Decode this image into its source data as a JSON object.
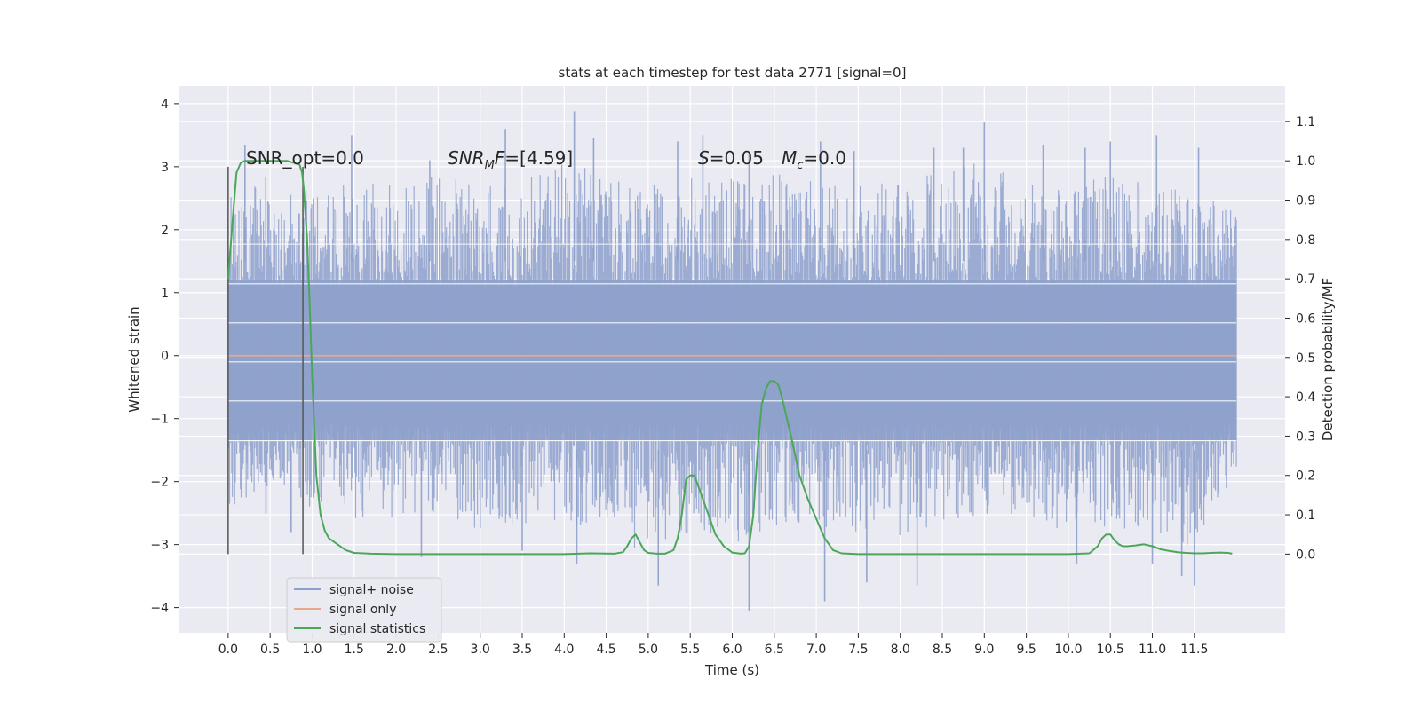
{
  "chart_data": {
    "type": "line",
    "title": "stats at each timestep for test data 2771 [signal=0]",
    "xlabel": "Time (s)",
    "ylabel_left": "Whitened strain",
    "ylabel_right": "Detection probability/MF",
    "xlim": [
      -0.58,
      12.58
    ],
    "ylim_left": [
      -4.4,
      4.28
    ],
    "ylim_right": [
      -0.2,
      1.19
    ],
    "x_ticks": [
      0.0,
      0.5,
      1.0,
      1.5,
      2.0,
      2.5,
      3.0,
      3.5,
      4.0,
      4.5,
      5.0,
      5.5,
      6.0,
      6.5,
      7.0,
      7.5,
      8.0,
      8.5,
      9.0,
      9.5,
      10.0,
      10.5,
      11.0,
      11.5
    ],
    "x_tick_labels": [
      "0.0",
      "0.5",
      "1.0",
      "1.5",
      "2.0",
      "2.5",
      "3.0",
      "3.5",
      "4.0",
      "4.5",
      "5.0",
      "5.5",
      "6.0",
      "6.5",
      "7.0",
      "7.5",
      "8.0",
      "8.5",
      "9.0",
      "9.5",
      "10.0",
      "10.5",
      "11.0",
      "11.5"
    ],
    "y_left_ticks": [
      -4,
      -3,
      -2,
      -1,
      0,
      1,
      2,
      3,
      4
    ],
    "y_left_tick_labels": [
      "−4",
      "−3",
      "−2",
      "−1",
      "0",
      "1",
      "2",
      "3",
      "4"
    ],
    "y_right_ticks": [
      0.0,
      0.1,
      0.2,
      0.3,
      0.4,
      0.5,
      0.6,
      0.7,
      0.8,
      0.9,
      1.0,
      1.1
    ],
    "y_right_tick_labels": [
      "0.0",
      "0.1",
      "0.2",
      "0.3",
      "0.4",
      "0.5",
      "0.6",
      "0.7",
      "0.8",
      "0.9",
      "1.0",
      "1.1"
    ],
    "grid": true,
    "legend_placement": "lower-left",
    "annotations": {
      "snr_opt": "SNR_opt=0.0",
      "snr_mf_main": "SNR",
      "snr_mf_sub": "M",
      "snr_mf_rest": "F=[4.59]",
      "s_main": "S",
      "s_rest": "=0.05",
      "mc_main": "M",
      "mc_sub": "c",
      "mc_rest": "=0.0"
    },
    "vlines": [
      0.0,
      0.89
    ],
    "series": [
      {
        "name": "signal+ noise",
        "axis": "left",
        "color": "#8da0cb",
        "x_range": [
          0.0,
          12.0
        ],
        "envelope_upper": [
          [
            0.0,
            2.5
          ],
          [
            0.5,
            2.9
          ],
          [
            1.0,
            2.6
          ],
          [
            1.5,
            2.8
          ],
          [
            2.0,
            2.7
          ],
          [
            2.5,
            2.9
          ],
          [
            3.0,
            2.8
          ],
          [
            3.5,
            2.9
          ],
          [
            4.0,
            3.2
          ],
          [
            4.5,
            2.8
          ],
          [
            5.0,
            2.7
          ],
          [
            5.5,
            2.9
          ],
          [
            6.0,
            2.8
          ],
          [
            6.5,
            2.9
          ],
          [
            7.0,
            2.8
          ],
          [
            7.5,
            2.7
          ],
          [
            8.0,
            2.8
          ],
          [
            8.5,
            2.9
          ],
          [
            9.0,
            3.1
          ],
          [
            9.5,
            2.8
          ],
          [
            10.0,
            2.7
          ],
          [
            10.5,
            2.9
          ],
          [
            11.0,
            2.7
          ],
          [
            11.5,
            2.6
          ],
          [
            12.0,
            2.3
          ]
        ],
        "envelope_lower": [
          [
            0.0,
            -2.4
          ],
          [
            0.5,
            -2.2
          ],
          [
            1.0,
            -2.5
          ],
          [
            1.5,
            -2.6
          ],
          [
            2.0,
            -2.6
          ],
          [
            2.5,
            -2.5
          ],
          [
            3.0,
            -2.8
          ],
          [
            3.5,
            -2.7
          ],
          [
            4.0,
            -2.6
          ],
          [
            4.5,
            -2.9
          ],
          [
            5.0,
            -3.2
          ],
          [
            5.5,
            -2.8
          ],
          [
            6.0,
            -3.0
          ],
          [
            6.5,
            -2.7
          ],
          [
            7.0,
            -2.9
          ],
          [
            7.5,
            -2.8
          ],
          [
            8.0,
            -2.9
          ],
          [
            8.5,
            -2.7
          ],
          [
            9.0,
            -2.6
          ],
          [
            9.5,
            -2.6
          ],
          [
            10.0,
            -2.8
          ],
          [
            10.5,
            -2.7
          ],
          [
            11.0,
            -2.9
          ],
          [
            11.5,
            -3.1
          ],
          [
            12.0,
            -1.8
          ]
        ],
        "spikes": [
          [
            0.2,
            3.35
          ],
          [
            1.47,
            3.5
          ],
          [
            2.4,
            3.1
          ],
          [
            3.3,
            3.6
          ],
          [
            4.12,
            3.88
          ],
          [
            4.35,
            3.45
          ],
          [
            5.35,
            3.4
          ],
          [
            5.65,
            3.5
          ],
          [
            6.2,
            3.2
          ],
          [
            7.05,
            3.4
          ],
          [
            7.45,
            3.25
          ],
          [
            8.4,
            3.3
          ],
          [
            8.75,
            3.3
          ],
          [
            9.0,
            3.7
          ],
          [
            9.7,
            3.35
          ],
          [
            10.2,
            3.3
          ],
          [
            10.5,
            3.4
          ],
          [
            11.05,
            3.5
          ],
          [
            11.55,
            3.3
          ],
          [
            6.2,
            -4.05
          ],
          [
            5.12,
            -3.65
          ],
          [
            7.1,
            -3.9
          ],
          [
            7.6,
            -3.6
          ],
          [
            8.2,
            -3.65
          ],
          [
            11.5,
            -3.65
          ],
          [
            11.35,
            -3.5
          ],
          [
            2.3,
            -3.2
          ],
          [
            3.5,
            -3.1
          ],
          [
            4.15,
            -3.3
          ],
          [
            10.1,
            -3.3
          ],
          [
            11.0,
            -3.3
          ],
          [
            0.45,
            -2.5
          ],
          [
            0.75,
            -2.8
          ]
        ]
      },
      {
        "name": "signal only",
        "axis": "left",
        "color": "#e8a98a",
        "x": [
          0.0,
          12.0
        ],
        "y": [
          0.0,
          0.0
        ]
      },
      {
        "name": "signal statistics",
        "axis": "right",
        "color": "#4ca65a",
        "x": [
          0.0,
          0.05,
          0.1,
          0.15,
          0.2,
          0.3,
          0.4,
          0.6,
          0.7,
          0.78,
          0.85,
          0.88,
          0.9,
          0.94,
          0.97,
          1.0,
          1.05,
          1.1,
          1.15,
          1.2,
          1.3,
          1.4,
          1.5,
          1.7,
          2.0,
          3.0,
          4.0,
          4.3,
          4.6,
          4.7,
          4.75,
          4.8,
          4.85,
          4.9,
          4.95,
          5.0,
          5.1,
          5.2,
          5.3,
          5.35,
          5.4,
          5.45,
          5.5,
          5.55,
          5.6,
          5.7,
          5.8,
          5.9,
          6.0,
          6.1,
          6.15,
          6.2,
          6.25,
          6.3,
          6.35,
          6.4,
          6.45,
          6.5,
          6.55,
          6.6,
          6.7,
          6.8,
          6.9,
          7.0,
          7.1,
          7.2,
          7.3,
          7.5,
          8.0,
          9.0,
          10.0,
          10.25,
          10.35,
          10.4,
          10.45,
          10.5,
          10.55,
          10.6,
          10.65,
          10.7,
          10.8,
          10.9,
          11.0,
          11.1,
          11.2,
          11.3,
          11.4,
          11.5,
          11.6,
          11.7,
          11.8,
          11.9,
          11.95
        ],
        "y": [
          0.7,
          0.84,
          0.97,
          0.995,
          1.0,
          1.0,
          1.0,
          1.0,
          1.0,
          0.995,
          0.99,
          0.97,
          0.93,
          0.8,
          0.64,
          0.45,
          0.2,
          0.1,
          0.06,
          0.04,
          0.025,
          0.01,
          0.003,
          0.001,
          0.0,
          0.0,
          0.0,
          0.002,
          0.001,
          0.005,
          0.02,
          0.04,
          0.05,
          0.03,
          0.01,
          0.003,
          0.001,
          0.001,
          0.01,
          0.04,
          0.1,
          0.19,
          0.2,
          0.2,
          0.17,
          0.11,
          0.05,
          0.02,
          0.004,
          0.001,
          0.002,
          0.02,
          0.1,
          0.26,
          0.38,
          0.42,
          0.44,
          0.44,
          0.43,
          0.39,
          0.3,
          0.2,
          0.14,
          0.09,
          0.04,
          0.01,
          0.002,
          0.0,
          0.0,
          0.0,
          0.0,
          0.002,
          0.02,
          0.04,
          0.05,
          0.05,
          0.035,
          0.025,
          0.02,
          0.02,
          0.022,
          0.025,
          0.02,
          0.012,
          0.008,
          0.005,
          0.003,
          0.002,
          0.002,
          0.003,
          0.004,
          0.003,
          0.001
        ]
      }
    ]
  }
}
